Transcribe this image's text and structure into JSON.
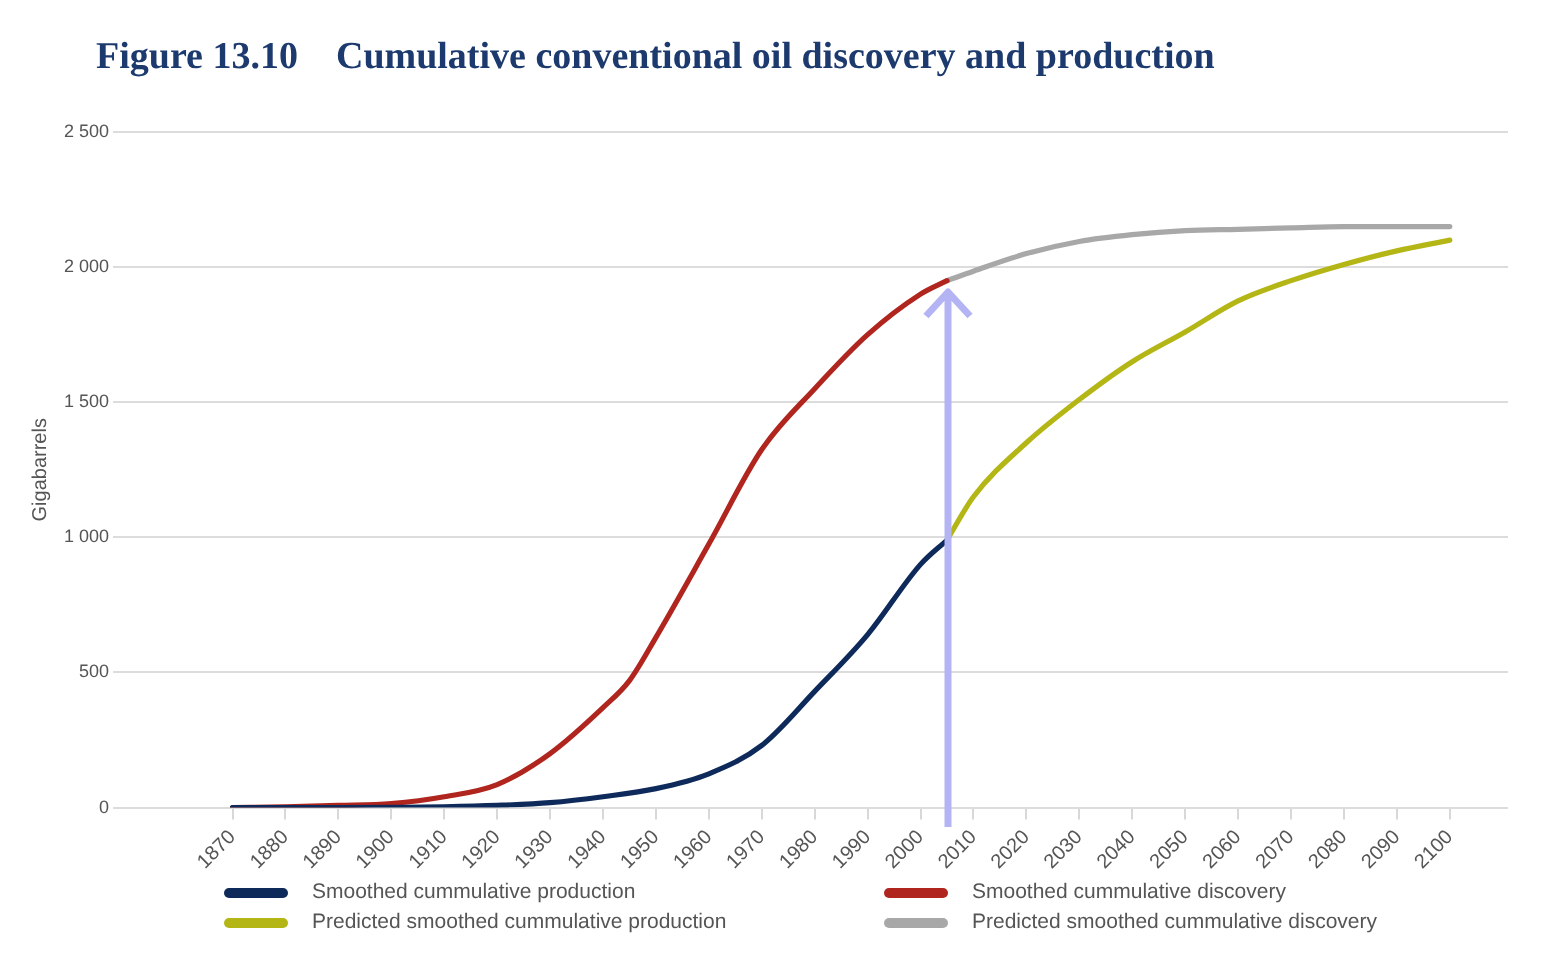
{
  "chart_data": {
    "type": "line",
    "title": "Figure 13.10    Cumulative conventional oil discovery and production",
    "ylabel": "Gigabarrels",
    "xlim": [
      1858,
      2111
    ],
    "xticks": [
      1870,
      1880,
      1890,
      1900,
      1910,
      1920,
      1930,
      1940,
      1950,
      1960,
      1970,
      1980,
      1990,
      2000,
      2010,
      2020,
      2030,
      2040,
      2050,
      2060,
      2070,
      2080,
      2090,
      2100
    ],
    "ylim": [
      0,
      2500
    ],
    "yticks": [
      0,
      500,
      {
        "value": 1000,
        "label": "1 000"
      },
      {
        "value": 1500,
        "label": "1 500"
      },
      {
        "value": 2000,
        "label": "2 000"
      },
      {
        "value": 2500,
        "label": "2 500"
      }
    ],
    "grid": "y",
    "legend": "bottom",
    "marker": "none",
    "line_style": "solid",
    "ref_lines": [
      {
        "axis": "x",
        "value": 2005,
        "label": null,
        "color": "#b4b4f4"
      }
    ],
    "series": [
      {
        "name": "Smoothed cummulative production",
        "color": "#0e2a5a",
        "x": [
          1870,
          1880,
          1890,
          1900,
          1910,
          1920,
          1930,
          1940,
          1950,
          1960,
          1970,
          1980,
          1990,
          2000,
          2005
        ],
        "values": [
          0,
          0,
          0,
          1,
          3,
          8,
          18,
          40,
          70,
          125,
          230,
          430,
          640,
          900,
          990
        ]
      },
      {
        "name": "Smoothed cummulative discovery",
        "color": "#b0261f",
        "x": [
          1870,
          1880,
          1890,
          1900,
          1910,
          1920,
          1930,
          1940,
          1945,
          1950,
          1960,
          1970,
          1980,
          1990,
          2000,
          2005
        ],
        "values": [
          0,
          3,
          8,
          15,
          40,
          85,
          200,
          370,
          470,
          630,
          975,
          1325,
          1550,
          1750,
          1900,
          1950
        ]
      },
      {
        "name": "Predicted smoothed cummulative production",
        "color": "#b3b614",
        "x": [
          2005,
          2010,
          2020,
          2030,
          2040,
          2050,
          2060,
          2070,
          2080,
          2090,
          2100
        ],
        "values": [
          990,
          1150,
          1350,
          1510,
          1650,
          1760,
          1875,
          1950,
          2010,
          2060,
          2100
        ]
      },
      {
        "name": "Predicted smoothed cummulative discovery",
        "color": "#a8a8a8",
        "x": [
          2005,
          2010,
          2020,
          2030,
          2040,
          2050,
          2060,
          2070,
          2080,
          2090,
          2100
        ],
        "values": [
          1950,
          1985,
          2050,
          2095,
          2120,
          2135,
          2140,
          2145,
          2150,
          2150,
          2150
        ]
      }
    ]
  }
}
